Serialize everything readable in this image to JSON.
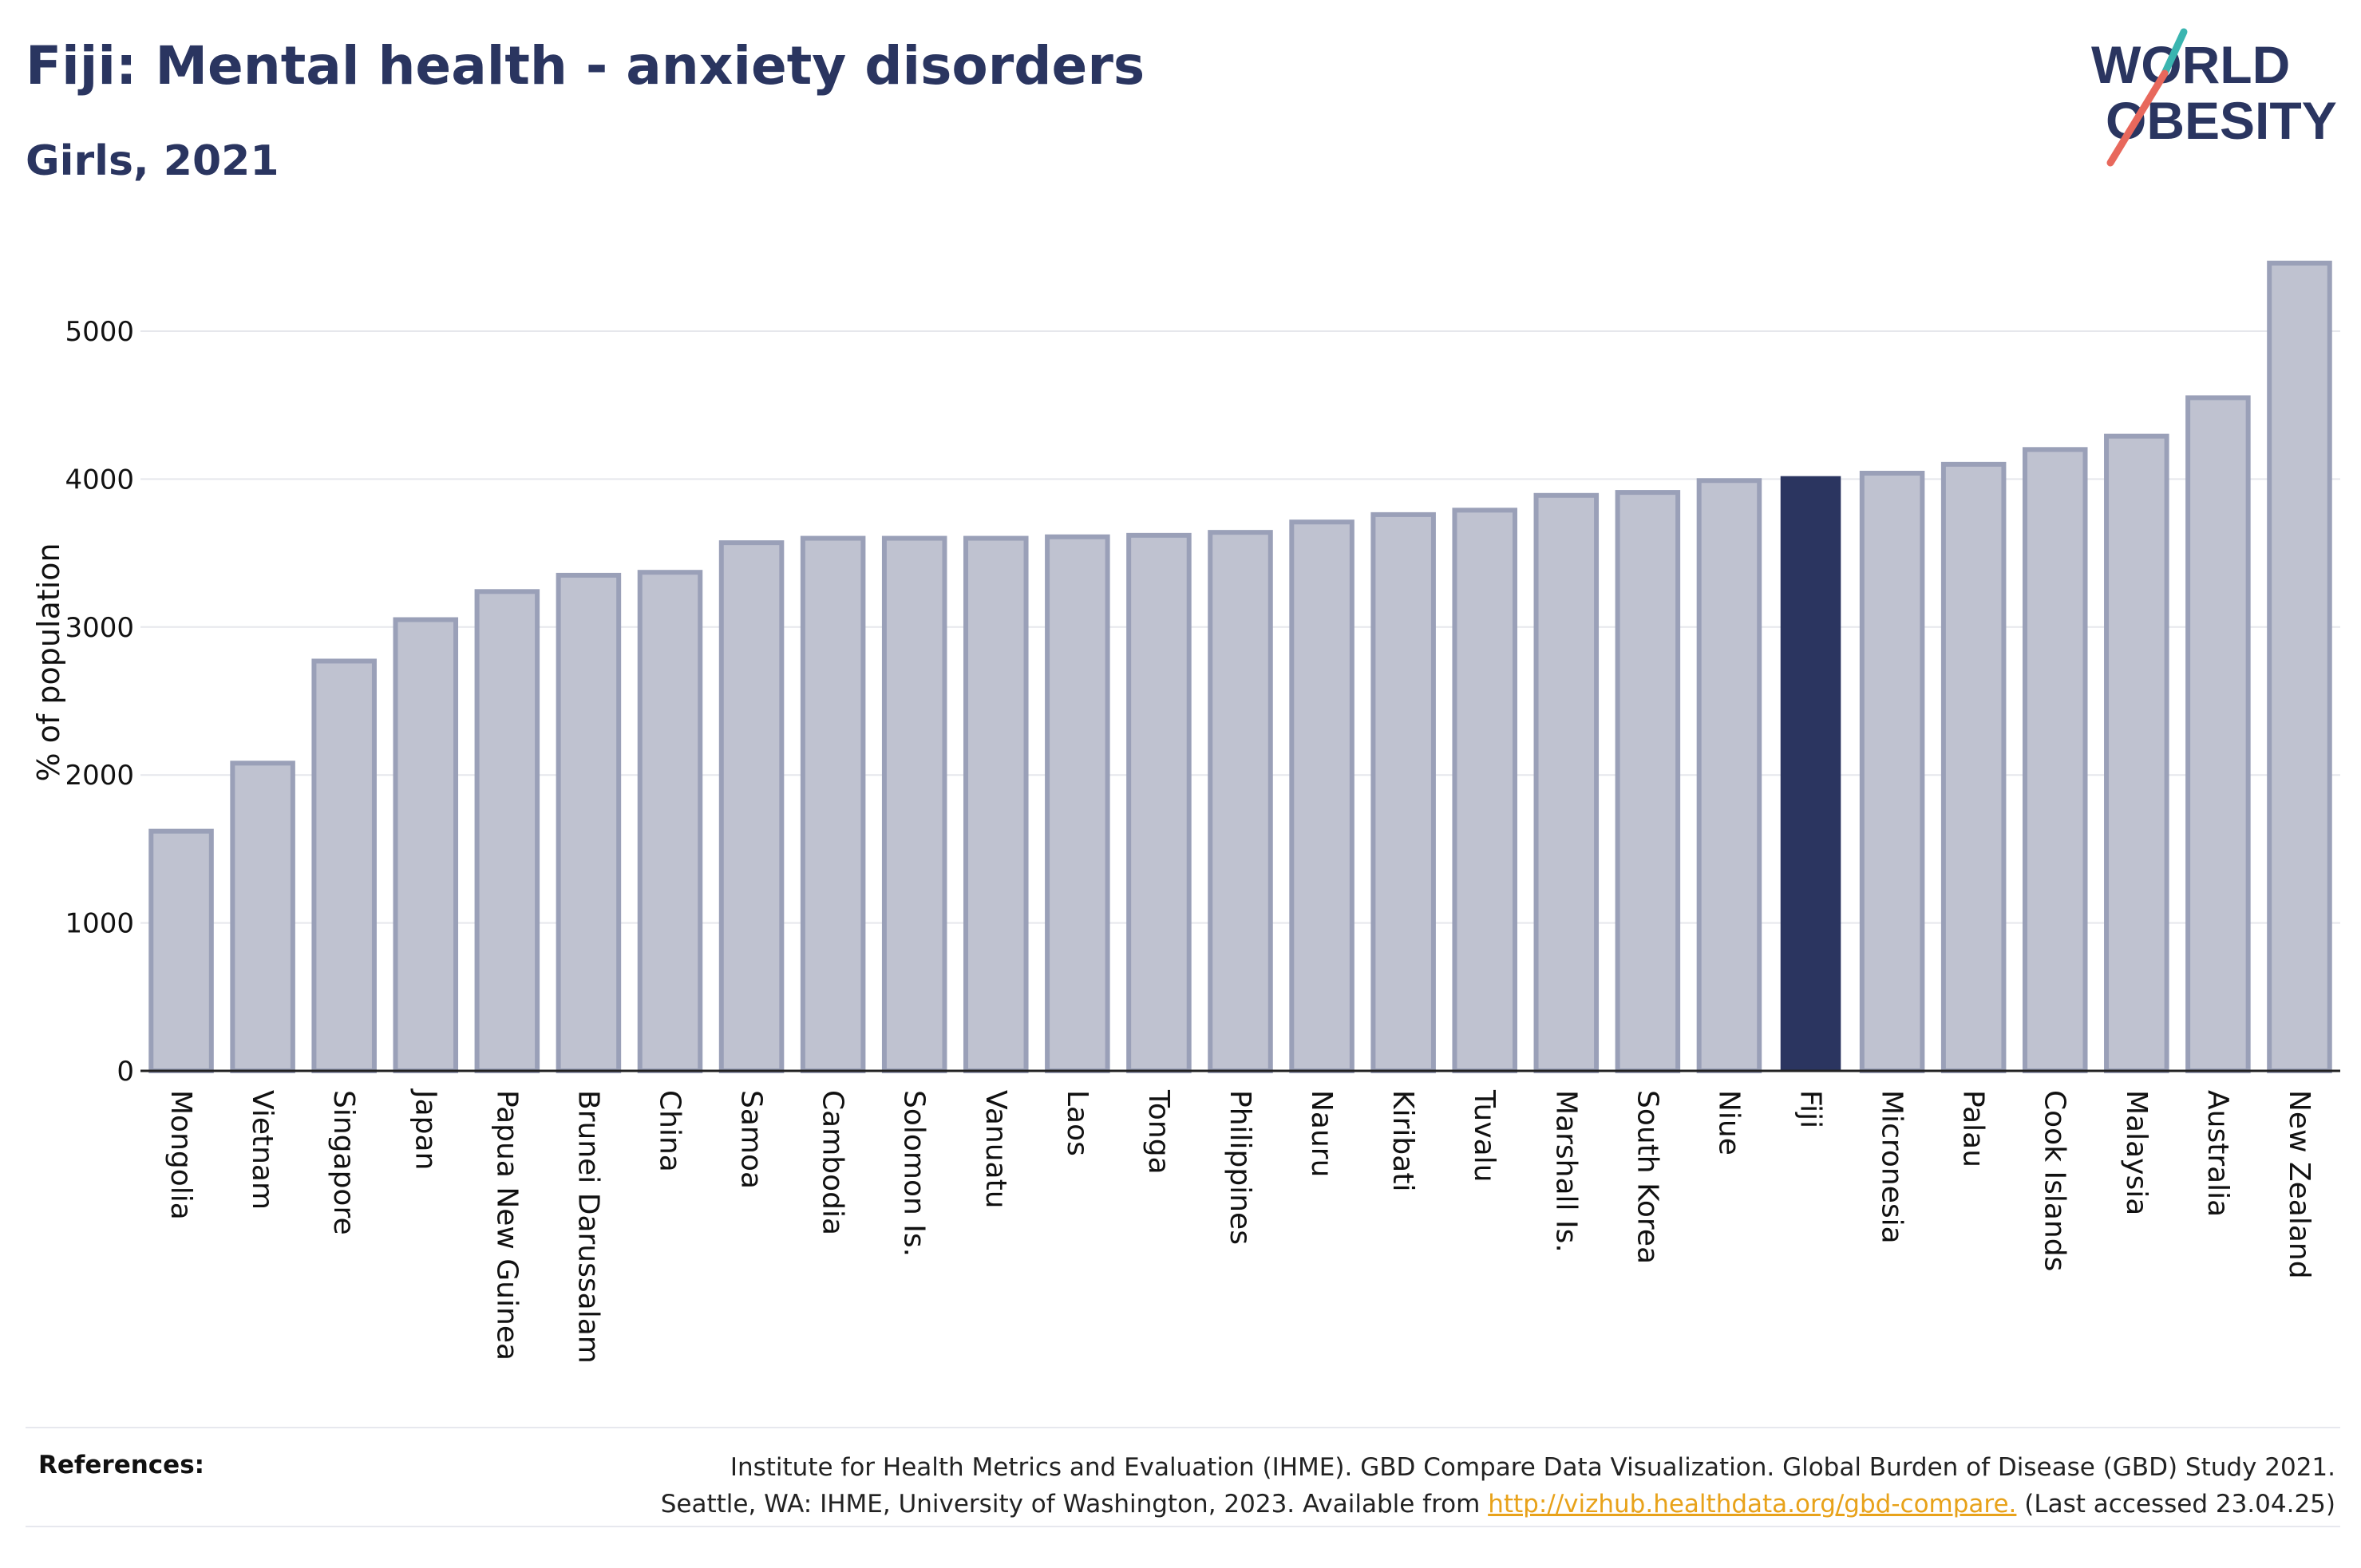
{
  "header": {
    "title": "Fiji: Mental health - anxiety disorders",
    "subtitle": "Girls, 2021"
  },
  "logo": {
    "line1": "WORLD",
    "line2": "OBESITY",
    "colors": {
      "text": "#2a3560",
      "slash_red": "#e8685c",
      "slash_teal": "#3ab5b0"
    }
  },
  "chart_data": {
    "type": "bar",
    "title": "Fiji: Mental health - anxiety disorders",
    "subtitle": "Girls, 2021",
    "xlabel": "",
    "ylabel": "% of population",
    "ylim": [
      0,
      5500
    ],
    "yticks": [
      0,
      1000,
      2000,
      3000,
      4000,
      5000
    ],
    "grid": true,
    "highlight": "Fiji",
    "colors": {
      "bar": "#bfc2d0",
      "bar_stroke": "#9aa0b8",
      "highlight": "#2b3560"
    },
    "categories": [
      "Mongolia",
      "Vietnam",
      "Singapore",
      "Japan",
      "Papua New Guinea",
      "Brunei Darussalam",
      "China",
      "Samoa",
      "Cambodia",
      "Solomon Is.",
      "Vanuatu",
      "Laos",
      "Tonga",
      "Philippines",
      "Nauru",
      "Kiribati",
      "Tuvalu",
      "Marshall Is.",
      "South Korea",
      "Niue",
      "Fiji",
      "Micronesia",
      "Palau",
      "Cook Islands",
      "Malaysia",
      "Australia",
      "New Zealand"
    ],
    "values": [
      1620,
      2080,
      2770,
      3050,
      3240,
      3350,
      3370,
      3570,
      3600,
      3600,
      3600,
      3610,
      3620,
      3640,
      3710,
      3760,
      3790,
      3890,
      3910,
      3990,
      4020,
      4040,
      4100,
      4200,
      4290,
      4550,
      5460
    ]
  },
  "references": {
    "label": "References:",
    "line1": "Institute for Health Metrics and Evaluation (IHME). GBD Compare Data Visualization. Global Burden of Disease (GBD) Study 2021.",
    "line2_prefix": "Seattle, WA: IHME, University of Washington, 2023. Available from ",
    "link": "http://vizhub.healthdata.org/gbd-compare.",
    "line2_suffix": " (Last accessed 23.04.25)"
  }
}
